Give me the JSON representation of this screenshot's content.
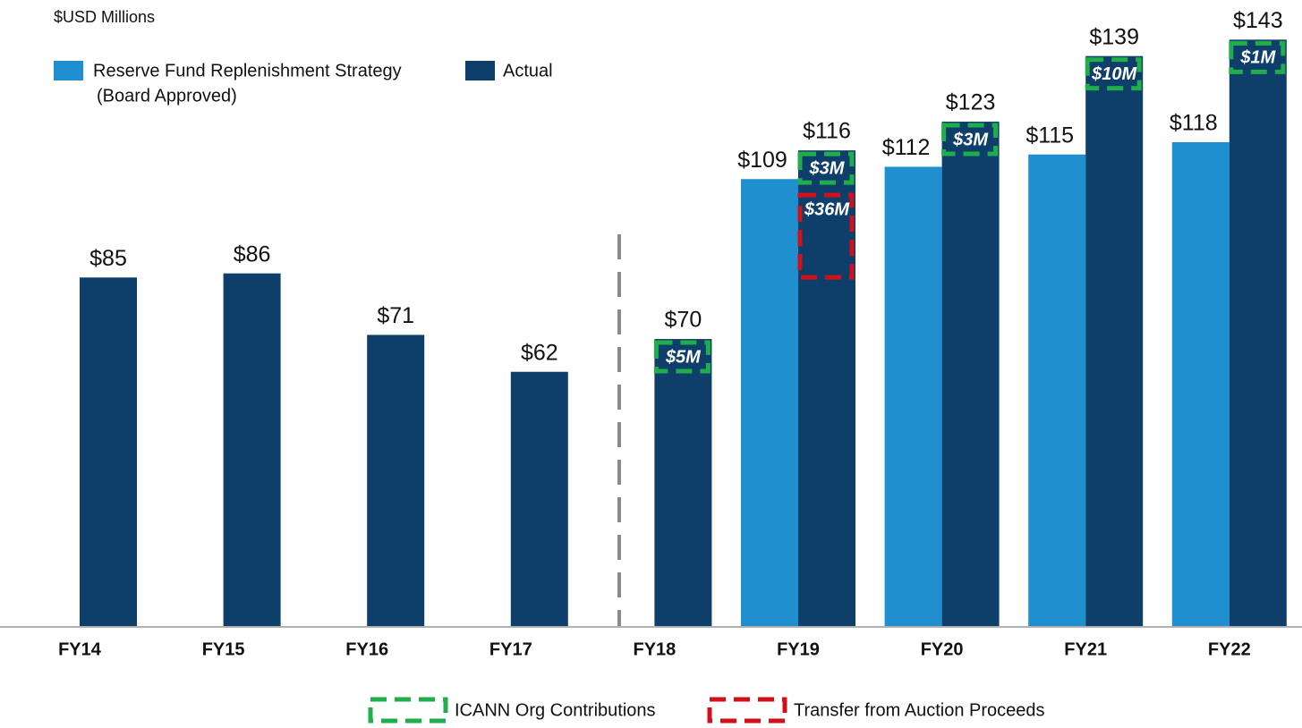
{
  "chart_data": {
    "type": "bar",
    "unit_label": "$USD Millions",
    "categories": [
      "FY14",
      "FY15",
      "FY16",
      "FY17",
      "FY18",
      "FY19",
      "FY20",
      "FY21",
      "FY22"
    ],
    "series": [
      {
        "name": "Reserve Fund Replenishment Strategy",
        "legend_note": "(Board Approved)",
        "color": "#1f8fcf",
        "values": [
          null,
          null,
          null,
          null,
          null,
          109,
          112,
          115,
          118
        ],
        "value_labels": [
          null,
          null,
          null,
          null,
          null,
          "$109",
          "$112",
          "$115",
          "$118"
        ]
      },
      {
        "name": "Actual",
        "color": "#0e3f6a",
        "values": [
          85,
          86,
          71,
          62,
          70,
          116,
          123,
          139,
          143
        ],
        "value_labels": [
          "$85",
          "$86",
          "$71",
          "$62",
          "$70",
          "$116",
          "$123",
          "$139",
          "$143"
        ]
      }
    ],
    "annotation_kinds": [
      {
        "name": "ICANN Org Contributions",
        "color": "#1fae4b"
      },
      {
        "name": "Transfer from Auction Proceeds",
        "color": "#d0101a"
      }
    ],
    "annotations": [
      {
        "category": 4,
        "kind": 0,
        "text": "$5M"
      },
      {
        "category": 5,
        "kind": 0,
        "text": "$3M"
      },
      {
        "category": 5,
        "kind": 1,
        "text": "$36M"
      },
      {
        "category": 6,
        "kind": 0,
        "text": "$3M"
      },
      {
        "category": 7,
        "kind": 0,
        "text": "$10M"
      },
      {
        "category": 8,
        "kind": 0,
        "text": "$1M"
      }
    ]
  }
}
